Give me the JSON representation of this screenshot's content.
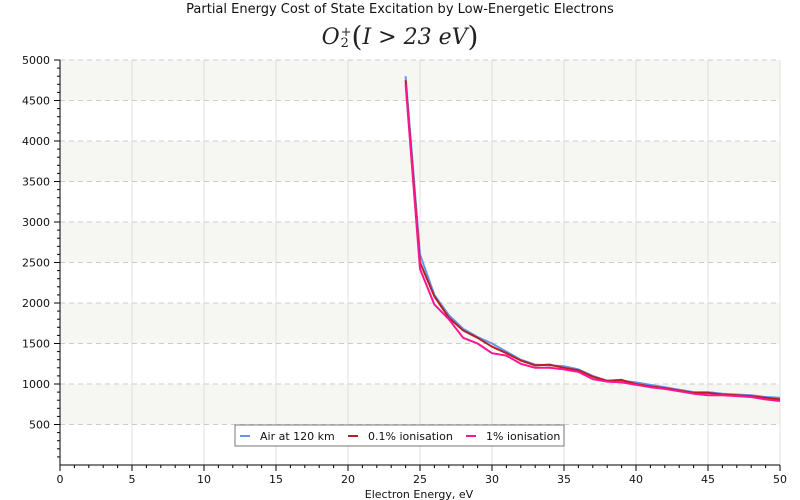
{
  "chart_data": {
    "type": "line",
    "title": "Partial Energy Cost of State Excitation by Low-Energetic Electrons",
    "subtitle": {
      "species": "O",
      "subscript": "2",
      "superscript": "+",
      "condition": "I > 23 eV"
    },
    "xlabel": "Electron Energy, eV",
    "ylabel": "",
    "xlim": [
      0,
      50
    ],
    "ylim": [
      0,
      5000
    ],
    "xticks": [
      0,
      5,
      10,
      15,
      20,
      25,
      30,
      35,
      40,
      45,
      50
    ],
    "xtick_labels": [
      "0",
      "5",
      "10",
      "15",
      "20",
      "25",
      "30",
      "35",
      "40",
      "45",
      "50"
    ],
    "yticks": [
      500,
      1000,
      1500,
      2000,
      2500,
      3000,
      3500,
      4000,
      4500,
      5000
    ],
    "ytick_labels": [
      "500",
      "1000",
      "1500",
      "2000",
      "2500",
      "3000",
      "3500",
      "4000",
      "4500",
      "5000"
    ],
    "x_minor_step": 1,
    "y_minor_step": 100,
    "grid": true,
    "legend_position": "bottom-center",
    "series": [
      {
        "name": "Air at 120 km",
        "color": "#6495ed",
        "x": [
          24,
          25,
          26,
          27,
          28,
          29,
          30,
          31,
          32,
          33,
          34,
          35,
          36,
          37,
          38,
          39,
          40,
          41,
          42,
          43,
          44,
          45,
          46,
          47,
          48,
          49,
          50
        ],
        "y": [
          4800,
          2600,
          2100,
          1850,
          1680,
          1580,
          1500,
          1400,
          1300,
          1240,
          1230,
          1220,
          1180,
          1100,
          1040,
          1040,
          1020,
          990,
          960,
          930,
          900,
          900,
          880,
          870,
          860,
          840,
          830
        ]
      },
      {
        "name": "0.1% ionisation",
        "color": "#b22222",
        "x": [
          24,
          25,
          26,
          27,
          28,
          29,
          30,
          31,
          32,
          33,
          34,
          35,
          36,
          37,
          38,
          39,
          40,
          41,
          42,
          43,
          44,
          45,
          46,
          47,
          48,
          49,
          50
        ],
        "y": [
          4750,
          2500,
          2080,
          1820,
          1660,
          1570,
          1460,
          1380,
          1290,
          1230,
          1240,
          1200,
          1170,
          1090,
          1040,
          1050,
          1000,
          970,
          950,
          920,
          890,
          890,
          870,
          860,
          850,
          830,
          810
        ]
      },
      {
        "name": "1% ionisation",
        "color": "#ff1493",
        "x": [
          24,
          25,
          26,
          27,
          28,
          29,
          30,
          31,
          32,
          33,
          34,
          35,
          36,
          37,
          38,
          39,
          40,
          41,
          42,
          43,
          44,
          45,
          46,
          47,
          48,
          49,
          50
        ],
        "y": [
          4700,
          2420,
          1980,
          1800,
          1570,
          1500,
          1380,
          1350,
          1250,
          1200,
          1200,
          1180,
          1150,
          1060,
          1030,
          1020,
          990,
          960,
          940,
          910,
          880,
          860,
          860,
          850,
          840,
          810,
          790
        ]
      }
    ]
  }
}
